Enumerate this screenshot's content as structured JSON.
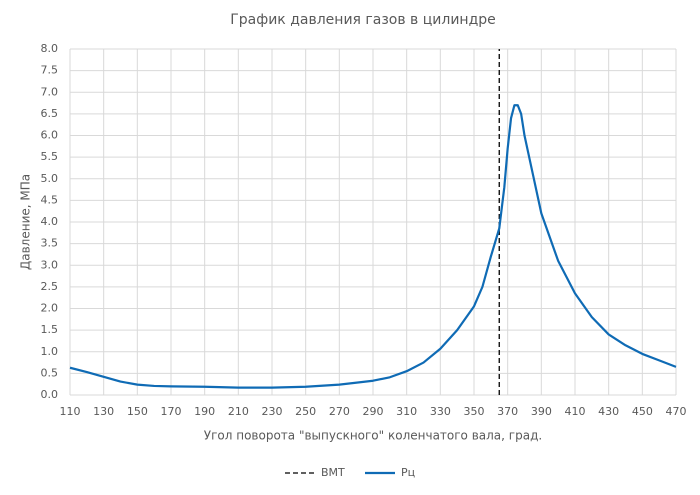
{
  "chart_data": {
    "type": "line",
    "title": "График давления газов в цилиндре",
    "x_label": "Угол поворота \"выпускного\" коленчатого вала, град.",
    "y_label": "Давление, МПа",
    "xlim": [
      110,
      470
    ],
    "xticks": [
      110,
      130,
      150,
      170,
      190,
      210,
      230,
      250,
      270,
      290,
      310,
      330,
      350,
      370,
      390,
      410,
      430,
      450,
      470
    ],
    "ylim": [
      0,
      8
    ],
    "yticks": [
      {
        "value": 0,
        "label": "0.0"
      },
      0.5,
      {
        "value": 1,
        "label": "1.0"
      },
      1.5,
      {
        "value": 2,
        "label": "2.0"
      },
      2.5,
      {
        "value": 3,
        "label": "3.0"
      },
      3.5,
      {
        "value": 4,
        "label": "4.0"
      },
      4.5,
      {
        "value": 5,
        "label": "5.0"
      },
      5.5,
      {
        "value": 6,
        "label": "6.0"
      },
      6.5,
      {
        "value": 7,
        "label": "7.0"
      },
      7.5,
      {
        "value": 8,
        "label": "8.0"
      }
    ],
    "grid": true,
    "legend": "bottom",
    "series": [
      {
        "name": "ВМТ",
        "color": "#000000",
        "dashed": true,
        "x": [
          365,
          365
        ],
        "values": [
          0,
          8
        ]
      },
      {
        "name": "Рц",
        "color": "#0f6bb5",
        "dashed": false,
        "x": [
          110,
          120,
          130,
          140,
          150,
          160,
          170,
          190,
          210,
          230,
          250,
          270,
          290,
          300,
          310,
          320,
          330,
          340,
          350,
          355,
          360,
          365,
          368,
          370,
          372,
          374,
          376,
          378,
          380,
          385,
          390,
          400,
          410,
          420,
          430,
          440,
          450,
          460,
          470
        ],
        "values": [
          0.63,
          0.53,
          0.42,
          0.31,
          0.24,
          0.21,
          0.2,
          0.19,
          0.17,
          0.17,
          0.19,
          0.24,
          0.33,
          0.41,
          0.55,
          0.75,
          1.07,
          1.5,
          2.05,
          2.5,
          3.2,
          3.85,
          4.8,
          5.7,
          6.4,
          6.7,
          6.7,
          6.5,
          6.0,
          5.1,
          4.2,
          3.1,
          2.35,
          1.8,
          1.4,
          1.15,
          0.95,
          0.8,
          0.65
        ]
      }
    ]
  }
}
